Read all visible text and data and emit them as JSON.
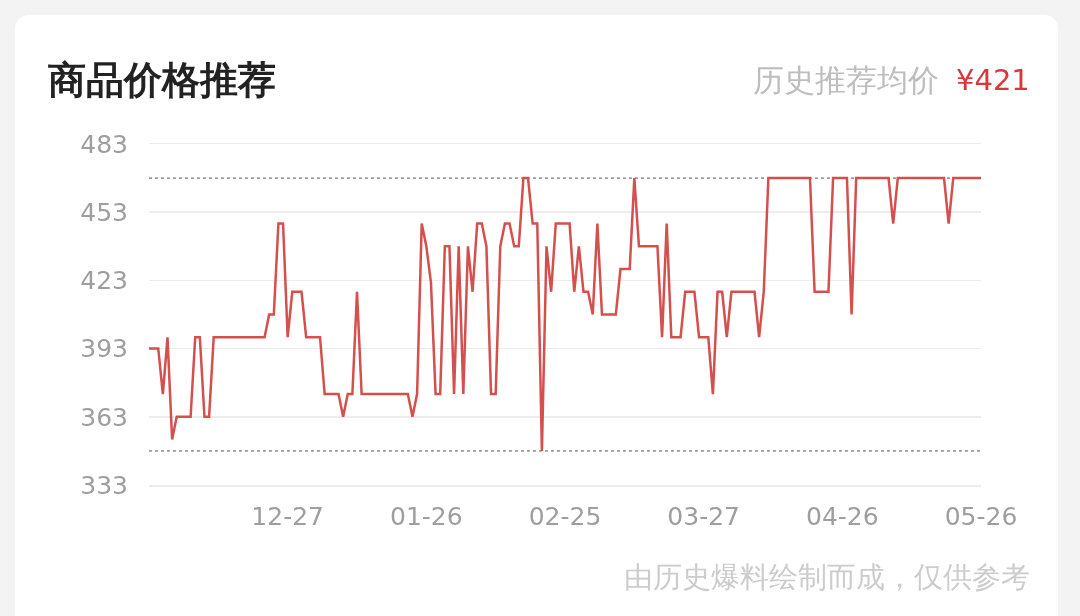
{
  "chart_data": {
    "type": "line",
    "title": "商品价格推荐",
    "annotations": [
      "历史推荐均价",
      "¥421",
      "由历史爆料绘制而成，仅供参考"
    ],
    "categories": [
      null,
      null,
      null,
      null,
      null,
      null,
      null,
      null,
      null,
      null,
      null,
      null,
      null,
      null,
      null,
      null,
      null,
      null,
      null,
      null,
      null,
      null,
      null,
      null,
      null,
      null,
      null,
      null,
      null,
      null,
      "12-27",
      null,
      null,
      null,
      null,
      null,
      null,
      null,
      null,
      null,
      null,
      null,
      null,
      null,
      null,
      null,
      null,
      null,
      null,
      null,
      null,
      null,
      null,
      null,
      null,
      null,
      null,
      null,
      null,
      null,
      "01-26",
      null,
      null,
      null,
      null,
      null,
      null,
      null,
      null,
      null,
      null,
      null,
      null,
      null,
      null,
      null,
      null,
      null,
      null,
      null,
      null,
      null,
      null,
      null,
      null,
      null,
      null,
      null,
      null,
      null,
      "02-25",
      null,
      null,
      null,
      null,
      null,
      null,
      null,
      null,
      null,
      null,
      null,
      null,
      null,
      null,
      null,
      null,
      null,
      null,
      null,
      null,
      null,
      null,
      null,
      null,
      null,
      null,
      null,
      null,
      null,
      "03-27",
      null,
      null,
      null,
      null,
      null,
      null,
      null,
      null,
      null,
      null,
      null,
      null,
      null,
      null,
      null,
      null,
      null,
      null,
      null,
      null,
      null,
      null,
      null,
      null,
      null,
      null,
      null,
      null,
      null,
      "04-26",
      null,
      null,
      null,
      null,
      null,
      null,
      null,
      null,
      null,
      null,
      null,
      null,
      null,
      null,
      null,
      null,
      null,
      null,
      null,
      null,
      null,
      null,
      null,
      null,
      null,
      null,
      null,
      null,
      null,
      "05-26"
    ],
    "series": [
      {
        "color": "#d4504e",
        "values": [
          393,
          393,
          393,
          373,
          398,
          353,
          363,
          363,
          363,
          363,
          398,
          398,
          363,
          363,
          398,
          398,
          398,
          398,
          398,
          398,
          398,
          398,
          398,
          398,
          398,
          398,
          408,
          408,
          448,
          448,
          398,
          418,
          418,
          418,
          398,
          398,
          398,
          398,
          373,
          373,
          373,
          373,
          363,
          373,
          373,
          418,
          373,
          373,
          373,
          373,
          373,
          373,
          373,
          373,
          373,
          373,
          373,
          363,
          373,
          448,
          438,
          422,
          373,
          373,
          438,
          438,
          373,
          438,
          373,
          438,
          418,
          448,
          448,
          438,
          373,
          373,
          438,
          448,
          448,
          438,
          438,
          468,
          468,
          448,
          448,
          348,
          438,
          418,
          448,
          448,
          448,
          448,
          418,
          438,
          418,
          418,
          408,
          448,
          408,
          408,
          408,
          408,
          428,
          428,
          428,
          468,
          438,
          438,
          438,
          438,
          438,
          398,
          448,
          398,
          398,
          398,
          418,
          418,
          418,
          398,
          398,
          398,
          373,
          418,
          418,
          398,
          418,
          418,
          418,
          418,
          418,
          418,
          398,
          418,
          468,
          468,
          468,
          468,
          468,
          468,
          468,
          468,
          468,
          468,
          418,
          418,
          418,
          418,
          468,
          468,
          468,
          468,
          408,
          468,
          468,
          468,
          468,
          468,
          468,
          468,
          468,
          448,
          468,
          468,
          468,
          468,
          468,
          468,
          468,
          468,
          468,
          468,
          468,
          448,
          468,
          468,
          468,
          468,
          468,
          468,
          468
        ]
      }
    ],
    "ylim": [
      333,
      483
    ],
    "yticks": [
      333,
      363,
      393,
      423,
      453,
      483
    ],
    "ref_lines": [
      {
        "axis": "y",
        "value": 468,
        "color": "#9e9e9e",
        "line_style": "dotted"
      },
      {
        "axis": "y",
        "value": 348,
        "color": "#9e9e9e",
        "line_style": "dotted"
      }
    ],
    "grid": "y"
  }
}
